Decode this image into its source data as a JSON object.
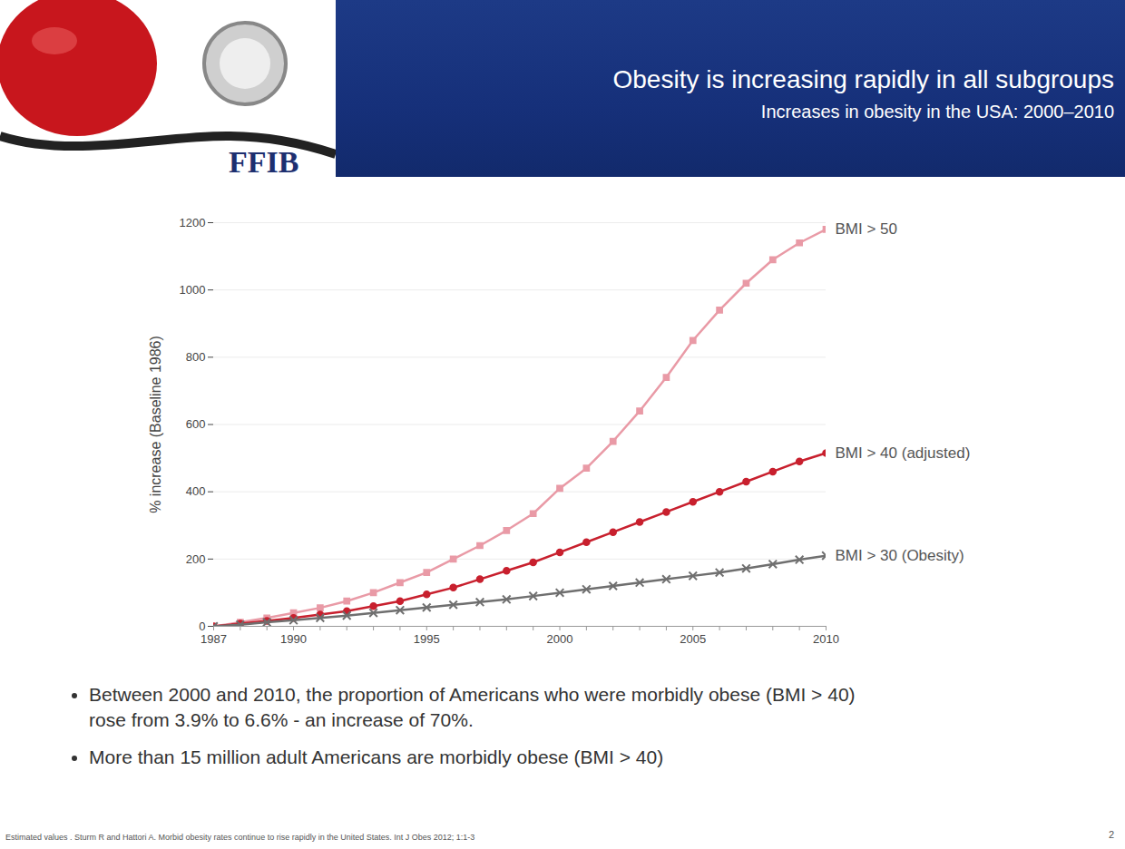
{
  "header": {
    "title": "Obesity is increasing rapidly in all subgroups",
    "subtitle": "Increases in obesity in the USA: 2000–2010",
    "logo": "FFIB"
  },
  "chart_data": {
    "type": "line",
    "y_label": "% increase (Baseline 1986)",
    "x": [
      1987,
      1988,
      1989,
      1990,
      1991,
      1992,
      1993,
      1994,
      1995,
      1996,
      1997,
      1998,
      1999,
      2000,
      2001,
      2002,
      2003,
      2004,
      2005,
      2006,
      2007,
      2008,
      2009,
      2010
    ],
    "series": [
      {
        "name": "BMI > 50",
        "color": "#e99aa6",
        "marker": "square",
        "values": [
          0,
          12,
          25,
          40,
          55,
          75,
          100,
          130,
          160,
          200,
          240,
          285,
          335,
          410,
          470,
          550,
          640,
          740,
          850,
          940,
          1020,
          1090,
          1140,
          1180
        ]
      },
      {
        "name": "BMI > 40 (adjusted)",
        "color": "#c8202e",
        "marker": "circle",
        "values": [
          0,
          8,
          16,
          25,
          35,
          45,
          60,
          75,
          95,
          115,
          140,
          165,
          190,
          220,
          250,
          280,
          310,
          340,
          370,
          400,
          430,
          460,
          490,
          515
        ]
      },
      {
        "name": "BMI > 30 (Obesity)",
        "color": "#6f6f6f",
        "marker": "times",
        "values": [
          0,
          5,
          12,
          18,
          25,
          32,
          40,
          48,
          56,
          64,
          72,
          80,
          90,
          100,
          110,
          120,
          130,
          140,
          150,
          160,
          172,
          185,
          198,
          210
        ]
      }
    ],
    "xlim": [
      1987,
      2010
    ],
    "xticks": [
      1987,
      1990,
      1995,
      2000,
      2005,
      2010
    ],
    "ylim": [
      0,
      1200
    ],
    "yticks": [
      0,
      200,
      400,
      600,
      800,
      1000,
      1200
    ],
    "grid": true
  },
  "bullets": [
    "Between 2000 and 2010, the proportion of Americans who were morbidly obese (BMI > 40) rose from 3.9% to 6.6% - an increase of 70%.",
    "More than 15 million adult Americans are morbidly obese (BMI > 40)"
  ],
  "footnote": "Estimated values . Sturm R and Hattori A. Morbid obesity rates continue to rise rapidly in the United States. Int J Obes 2012; 1:1-3",
  "page_number": 2
}
